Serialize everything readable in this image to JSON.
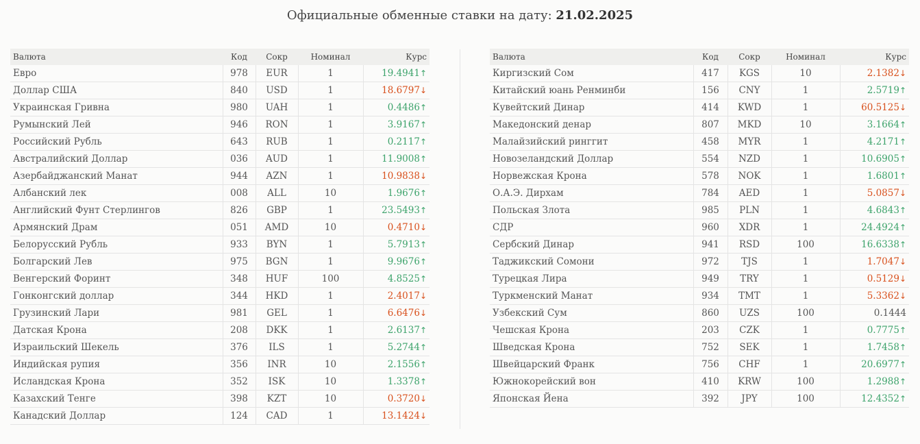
{
  "title": {
    "prefix": "Официальные обменные ставки на дату:",
    "date": "21.02.2025"
  },
  "headers": {
    "name": "Валюта",
    "code": "Код",
    "abbr": "Сокр",
    "nominal": "Номинал",
    "rate": "Курс"
  },
  "colors": {
    "up": "#3da36b",
    "down": "#d8501c"
  },
  "left_table": [
    {
      "name": "Евро",
      "code": "978",
      "abbr": "EUR",
      "nominal": "1",
      "rate": "19.4941",
      "trend": "up"
    },
    {
      "name": "Доллар США",
      "code": "840",
      "abbr": "USD",
      "nominal": "1",
      "rate": "18.6797",
      "trend": "down"
    },
    {
      "name": "Украинская Гривна",
      "code": "980",
      "abbr": "UAH",
      "nominal": "1",
      "rate": "0.4486",
      "trend": "up"
    },
    {
      "name": "Румынский Лей",
      "code": "946",
      "abbr": "RON",
      "nominal": "1",
      "rate": "3.9167",
      "trend": "up"
    },
    {
      "name": "Российский Рубль",
      "code": "643",
      "abbr": "RUB",
      "nominal": "1",
      "rate": "0.2117",
      "trend": "up"
    },
    {
      "name": "Австралийский Доллар",
      "code": "036",
      "abbr": "AUD",
      "nominal": "1",
      "rate": "11.9008",
      "trend": "up"
    },
    {
      "name": "Азербайджанский Манат",
      "code": "944",
      "abbr": "AZN",
      "nominal": "1",
      "rate": "10.9838",
      "trend": "down"
    },
    {
      "name": "Албанский лек",
      "code": "008",
      "abbr": "ALL",
      "nominal": "10",
      "rate": "1.9676",
      "trend": "up"
    },
    {
      "name": "Английский Фунт Стерлингов",
      "code": "826",
      "abbr": "GBP",
      "nominal": "1",
      "rate": "23.5493",
      "trend": "up"
    },
    {
      "name": "Армянский Драм",
      "code": "051",
      "abbr": "AMD",
      "nominal": "10",
      "rate": "0.4710",
      "trend": "down"
    },
    {
      "name": "Белорусский Рубль",
      "code": "933",
      "abbr": "BYN",
      "nominal": "1",
      "rate": "5.7913",
      "trend": "up"
    },
    {
      "name": "Болгарский Лев",
      "code": "975",
      "abbr": "BGN",
      "nominal": "1",
      "rate": "9.9676",
      "trend": "up"
    },
    {
      "name": "Венгерский Форинт",
      "code": "348",
      "abbr": "HUF",
      "nominal": "100",
      "rate": "4.8525",
      "trend": "up"
    },
    {
      "name": "Гонконгский доллар",
      "code": "344",
      "abbr": "HKD",
      "nominal": "1",
      "rate": "2.4017",
      "trend": "down"
    },
    {
      "name": "Грузинский Лари",
      "code": "981",
      "abbr": "GEL",
      "nominal": "1",
      "rate": "6.6476",
      "trend": "down"
    },
    {
      "name": "Датская Крона",
      "code": "208",
      "abbr": "DKK",
      "nominal": "1",
      "rate": "2.6137",
      "trend": "up"
    },
    {
      "name": "Израильский Шекель",
      "code": "376",
      "abbr": "ILS",
      "nominal": "1",
      "rate": "5.2744",
      "trend": "up"
    },
    {
      "name": "Индийская рупия",
      "code": "356",
      "abbr": "INR",
      "nominal": "10",
      "rate": "2.1556",
      "trend": "up"
    },
    {
      "name": "Исландская Крона",
      "code": "352",
      "abbr": "ISK",
      "nominal": "10",
      "rate": "1.3378",
      "trend": "up"
    },
    {
      "name": "Казахский Тенге",
      "code": "398",
      "abbr": "KZT",
      "nominal": "10",
      "rate": "0.3720",
      "trend": "down"
    },
    {
      "name": "Канадский Доллар",
      "code": "124",
      "abbr": "CAD",
      "nominal": "1",
      "rate": "13.1424",
      "trend": "down"
    }
  ],
  "right_table": [
    {
      "name": "Киргизский Сом",
      "code": "417",
      "abbr": "KGS",
      "nominal": "10",
      "rate": "2.1382",
      "trend": "down"
    },
    {
      "name": "Китайский юань Ренминби",
      "code": "156",
      "abbr": "CNY",
      "nominal": "1",
      "rate": "2.5719",
      "trend": "up"
    },
    {
      "name": "Кувейтский Динар",
      "code": "414",
      "abbr": "KWD",
      "nominal": "1",
      "rate": "60.5125",
      "trend": "down"
    },
    {
      "name": "Македонский денар",
      "code": "807",
      "abbr": "MKD",
      "nominal": "10",
      "rate": "3.1664",
      "trend": "up"
    },
    {
      "name": "Малайзийский ринггит",
      "code": "458",
      "abbr": "MYR",
      "nominal": "1",
      "rate": "4.2171",
      "trend": "up"
    },
    {
      "name": "Новозеландский Доллар",
      "code": "554",
      "abbr": "NZD",
      "nominal": "1",
      "rate": "10.6905",
      "trend": "up"
    },
    {
      "name": "Норвежская Крона",
      "code": "578",
      "abbr": "NOK",
      "nominal": "1",
      "rate": "1.6801",
      "trend": "up"
    },
    {
      "name": "О.А.Э. Дирхам",
      "code": "784",
      "abbr": "AED",
      "nominal": "1",
      "rate": "5.0857",
      "trend": "down"
    },
    {
      "name": "Польская Злота",
      "code": "985",
      "abbr": "PLN",
      "nominal": "1",
      "rate": "4.6843",
      "trend": "up"
    },
    {
      "name": "СДР",
      "code": "960",
      "abbr": "XDR",
      "nominal": "1",
      "rate": "24.4924",
      "trend": "up"
    },
    {
      "name": "Сербский Динар",
      "code": "941",
      "abbr": "RSD",
      "nominal": "100",
      "rate": "16.6338",
      "trend": "up"
    },
    {
      "name": "Таджикский Сомони",
      "code": "972",
      "abbr": "TJS",
      "nominal": "1",
      "rate": "1.7047",
      "trend": "down"
    },
    {
      "name": "Турецкая Лира",
      "code": "949",
      "abbr": "TRY",
      "nominal": "1",
      "rate": "0.5129",
      "trend": "down"
    },
    {
      "name": "Туркменский Манат",
      "code": "934",
      "abbr": "TMT",
      "nominal": "1",
      "rate": "5.3362",
      "trend": "down"
    },
    {
      "name": "Узбекский Сум",
      "code": "860",
      "abbr": "UZS",
      "nominal": "100",
      "rate": "0.1444",
      "trend": "none"
    },
    {
      "name": "Чешская Крона",
      "code": "203",
      "abbr": "CZK",
      "nominal": "1",
      "rate": "0.7775",
      "trend": "up"
    },
    {
      "name": "Шведская Крона",
      "code": "752",
      "abbr": "SEK",
      "nominal": "1",
      "rate": "1.7458",
      "trend": "up"
    },
    {
      "name": "Швейцарский Франк",
      "code": "756",
      "abbr": "CHF",
      "nominal": "1",
      "rate": "20.6977",
      "trend": "up"
    },
    {
      "name": "Южнокорейский вон",
      "code": "410",
      "abbr": "KRW",
      "nominal": "100",
      "rate": "1.2988",
      "trend": "up"
    },
    {
      "name": "Японская Йена",
      "code": "392",
      "abbr": "JPY",
      "nominal": "100",
      "rate": "12.4352",
      "trend": "up"
    }
  ]
}
